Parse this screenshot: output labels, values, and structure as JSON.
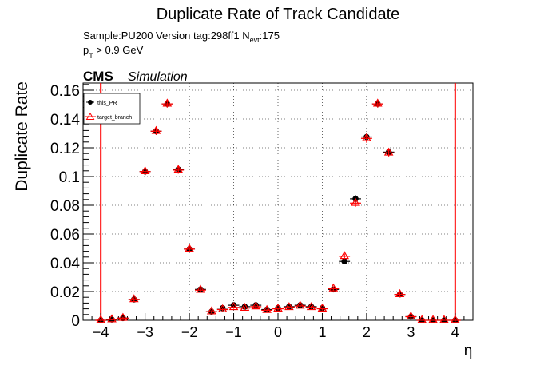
{
  "chart_data": {
    "type": "scatter",
    "title": "Duplicate Rate of Track Candidate",
    "info": {
      "sample_line": "Sample:PU200   Version tag:298ff1  N",
      "nevt_sub": "evt",
      "nevt_value": ":175",
      "pt_prefix": "p",
      "pt_sub": "T",
      "pt_cut": " > 0.9 GeV"
    },
    "cms_label": "CMS",
    "cms_extra": "Simulation",
    "xlabel": "η",
    "ylabel": "Duplicate Rate",
    "xlim": [
      -4.4,
      4.4
    ],
    "ylim": [
      0,
      0.165
    ],
    "xticks": [
      -4,
      -3,
      -2,
      -1,
      0,
      1,
      2,
      3,
      4
    ],
    "xtick_labels": [
      "−4",
      "−3",
      "−2",
      "−1",
      "0",
      "1",
      "2",
      "3",
      "4"
    ],
    "yticks": [
      0,
      0.02,
      0.04,
      0.06,
      0.08,
      0.1,
      0.12,
      0.14,
      0.16
    ],
    "ytick_labels": [
      "0",
      "0.02",
      "0.04",
      "0.06",
      "0.08",
      "0.1",
      "0.12",
      "0.14",
      "0.16"
    ],
    "grid": true,
    "legend_position": "top-left",
    "vertical_lines": [
      -4.0,
      4.0
    ],
    "x_bin_halfwidth": 0.125,
    "x": [
      -4.0,
      -3.75,
      -3.5,
      -3.25,
      -3.0,
      -2.75,
      -2.5,
      -2.25,
      -2.0,
      -1.75,
      -1.5,
      -1.25,
      -1.0,
      -0.75,
      -0.5,
      -0.25,
      0.0,
      0.25,
      0.5,
      0.75,
      1.0,
      1.25,
      1.5,
      1.75,
      2.0,
      2.25,
      2.5,
      2.75,
      3.0,
      3.25,
      3.5,
      3.75,
      4.0
    ],
    "series": [
      {
        "name": "this_PR",
        "color": "#000000",
        "marker": "circle",
        "values": [
          0.0,
          0.0005,
          0.0015,
          0.0145,
          0.1035,
          0.1315,
          0.1505,
          0.105,
          0.0495,
          0.0215,
          0.006,
          0.0085,
          0.0105,
          0.0095,
          0.0105,
          0.0075,
          0.0085,
          0.0095,
          0.0105,
          0.0095,
          0.0085,
          0.0215,
          0.041,
          0.0845,
          0.1275,
          0.1505,
          0.117,
          0.018,
          0.0025,
          0.0,
          0.0,
          0.0,
          0.0
        ],
        "errors": [
          0.001,
          0.0005,
          0.001,
          0.0015,
          0.0025,
          0.0025,
          0.0025,
          0.0025,
          0.002,
          0.0015,
          0.001,
          0.001,
          0.001,
          0.001,
          0.001,
          0.001,
          0.001,
          0.001,
          0.001,
          0.001,
          0.001,
          0.0015,
          0.002,
          0.0025,
          0.003,
          0.0025,
          0.0025,
          0.0015,
          0.001,
          0.0,
          0.0,
          0.0,
          0.001
        ]
      },
      {
        "name": "target_branch",
        "color": "#ff0000",
        "marker": "open-triangle",
        "values": [
          0.0,
          0.0005,
          0.0015,
          0.0145,
          0.1035,
          0.1315,
          0.1505,
          0.1045,
          0.0495,
          0.021,
          0.006,
          0.0075,
          0.009,
          0.0085,
          0.0095,
          0.007,
          0.008,
          0.009,
          0.01,
          0.009,
          0.008,
          0.022,
          0.0445,
          0.0815,
          0.1265,
          0.1505,
          0.1165,
          0.018,
          0.0025,
          0.0,
          0.0,
          0.0,
          0.0
        ],
        "errors": [
          0.001,
          0.0005,
          0.001,
          0.0015,
          0.0025,
          0.0025,
          0.0025,
          0.0025,
          0.002,
          0.0015,
          0.001,
          0.001,
          0.001,
          0.001,
          0.001,
          0.001,
          0.001,
          0.001,
          0.001,
          0.001,
          0.001,
          0.0015,
          0.002,
          0.0025,
          0.003,
          0.0025,
          0.0025,
          0.0015,
          0.001,
          0.0,
          0.0,
          0.0,
          0.001
        ]
      }
    ]
  }
}
